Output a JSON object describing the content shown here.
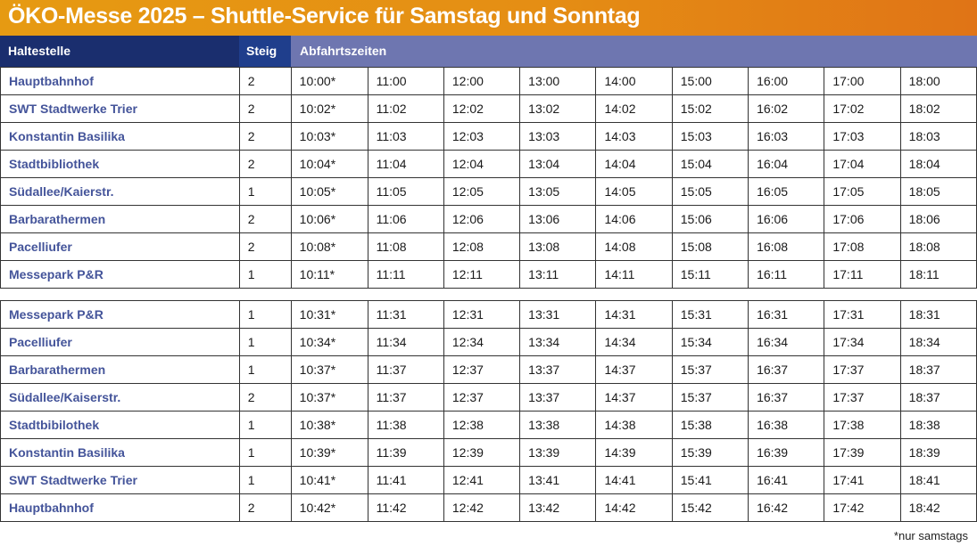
{
  "title": "ÖKO-Messe 2025 – Shuttle-Service für Samstag und Sonntag",
  "header": {
    "stop": "Haltestelle",
    "platform": "Steig",
    "times": "Abfahrtszeiten"
  },
  "sections": [
    {
      "rows": [
        {
          "stop": "Hauptbahnhof",
          "platform": "2",
          "times": [
            "10:00*",
            "11:00",
            "12:00",
            "13:00",
            "14:00",
            "15:00",
            "16:00",
            "17:00",
            "18:00"
          ]
        },
        {
          "stop": "SWT Stadtwerke Trier",
          "platform": "2",
          "times": [
            "10:02*",
            "11:02",
            "12:02",
            "13:02",
            "14:02",
            "15:02",
            "16:02",
            "17:02",
            "18:02"
          ]
        },
        {
          "stop": "Konstantin Basilika",
          "platform": "2",
          "times": [
            "10:03*",
            "11:03",
            "12:03",
            "13:03",
            "14:03",
            "15:03",
            "16:03",
            "17:03",
            "18:03"
          ]
        },
        {
          "stop": "Stadtbibliothek",
          "platform": "2",
          "times": [
            "10:04*",
            "11:04",
            "12:04",
            "13:04",
            "14:04",
            "15:04",
            "16:04",
            "17:04",
            "18:04"
          ]
        },
        {
          "stop": "Südallee/Kaierstr.",
          "platform": "1",
          "times": [
            "10:05*",
            "11:05",
            "12:05",
            "13:05",
            "14:05",
            "15:05",
            "16:05",
            "17:05",
            "18:05"
          ]
        },
        {
          "stop": "Barbarathermen",
          "platform": "2",
          "times": [
            "10:06*",
            "11:06",
            "12:06",
            "13:06",
            "14:06",
            "15:06",
            "16:06",
            "17:06",
            "18:06"
          ]
        },
        {
          "stop": "Pacelliufer",
          "platform": "2",
          "times": [
            "10:08*",
            "11:08",
            "12:08",
            "13:08",
            "14:08",
            "15:08",
            "16:08",
            "17:08",
            "18:08"
          ]
        },
        {
          "stop": "Messepark P&R",
          "platform": "1",
          "times": [
            "10:11*",
            "11:11",
            "12:11",
            "13:11",
            "14:11",
            "15:11",
            "16:11",
            "17:11",
            "18:11"
          ]
        }
      ]
    },
    {
      "rows": [
        {
          "stop": "Messepark P&R",
          "platform": "1",
          "times": [
            "10:31*",
            "11:31",
            "12:31",
            "13:31",
            "14:31",
            "15:31",
            "16:31",
            "17:31",
            "18:31"
          ]
        },
        {
          "stop": "Pacelliufer",
          "platform": "1",
          "times": [
            "10:34*",
            "11:34",
            "12:34",
            "13:34",
            "14:34",
            "15:34",
            "16:34",
            "17:34",
            "18:34"
          ]
        },
        {
          "stop": "Barbarathermen",
          "platform": "1",
          "times": [
            "10:37*",
            "11:37",
            "12:37",
            "13:37",
            "14:37",
            "15:37",
            "16:37",
            "17:37",
            "18:37"
          ]
        },
        {
          "stop": "Südallee/Kaiserstr.",
          "platform": "2",
          "times": [
            "10:37*",
            "11:37",
            "12:37",
            "13:37",
            "14:37",
            "15:37",
            "16:37",
            "17:37",
            "18:37"
          ]
        },
        {
          "stop": "Stadtbibilothek",
          "platform": "1",
          "times": [
            "10:38*",
            "11:38",
            "12:38",
            "13:38",
            "14:38",
            "15:38",
            "16:38",
            "17:38",
            "18:38"
          ]
        },
        {
          "stop": "Konstantin Basilika",
          "platform": "1",
          "times": [
            "10:39*",
            "11:39",
            "12:39",
            "13:39",
            "14:39",
            "15:39",
            "16:39",
            "17:39",
            "18:39"
          ]
        },
        {
          "stop": "SWT Stadtwerke Trier",
          "platform": "1",
          "times": [
            "10:41*",
            "11:41",
            "12:41",
            "13:41",
            "14:41",
            "15:41",
            "16:41",
            "17:41",
            "18:41"
          ]
        },
        {
          "stop": "Hauptbahnhof",
          "platform": "2",
          "times": [
            "10:42*",
            "11:42",
            "12:42",
            "13:42",
            "14:42",
            "15:42",
            "16:42",
            "17:42",
            "18:42"
          ]
        }
      ]
    }
  ],
  "footnote": "*nur samstags",
  "colors": {
    "title_bg": "#e58e14",
    "header_stop": "#1a2e6e",
    "header_steig": "#1f3e8c",
    "header_times": "#6e76b0",
    "stop_text": "#44549a"
  }
}
